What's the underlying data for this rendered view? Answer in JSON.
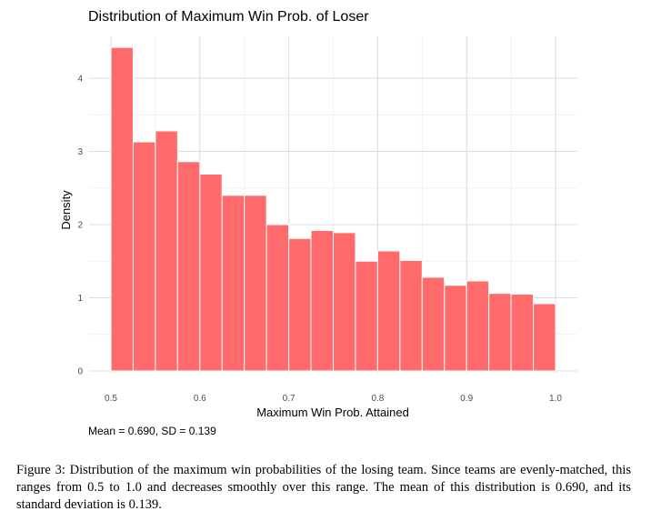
{
  "chart_data": {
    "type": "bar",
    "title": "Distribution of Maximum Win Prob. of Loser",
    "xlabel": "Maximum Win Prob. Attained",
    "ylabel": "Density",
    "subtitle_below": "Mean = 0.690, SD = 0.139",
    "xlim": [
      0.5,
      1.0
    ],
    "ylim": [
      0,
      4.4
    ],
    "bin_width": 0.025,
    "x_ticks": [
      "0.5",
      "0.6",
      "0.7",
      "0.8",
      "0.9",
      "1.0"
    ],
    "y_ticks": [
      "0",
      "1",
      "2",
      "3",
      "4"
    ],
    "bins_start": [
      0.5,
      0.525,
      0.55,
      0.575,
      0.6,
      0.625,
      0.65,
      0.675,
      0.7,
      0.725,
      0.75,
      0.775,
      0.8,
      0.825,
      0.85,
      0.875,
      0.9,
      0.925,
      0.95,
      0.975
    ],
    "values": [
      4.42,
      3.13,
      3.28,
      2.86,
      2.69,
      2.4,
      2.4,
      2.0,
      1.81,
      1.92,
      1.89,
      1.5,
      1.64,
      1.51,
      1.28,
      1.17,
      1.23,
      1.06,
      1.05,
      0.92
    ],
    "bar_color": "#ff6b6b",
    "grid": true,
    "legend": "none"
  },
  "caption": "Figure 3: Distribution of the maximum win probabilities of the losing team. Since teams are evenly-matched, this ranges from 0.5 to 1.0 and decreases smoothly over this range. The mean of this distribution is 0.690, and its standard deviation is 0.139."
}
